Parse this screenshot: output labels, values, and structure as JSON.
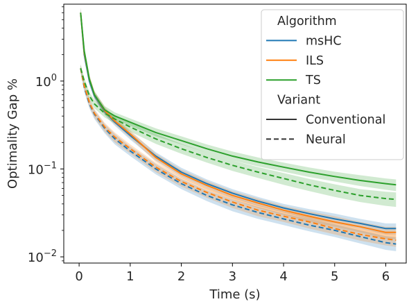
{
  "chart_data": {
    "type": "line",
    "title": "",
    "xlabel": "Time (s)",
    "ylabel": "Optimality Gap %",
    "xlim": [
      -0.3,
      6.4
    ],
    "ylim": [
      0.0085,
      7.5
    ],
    "yscale": "log",
    "grid": false,
    "x_ticks": [
      0,
      1,
      2,
      3,
      4,
      5,
      6
    ],
    "x_tick_labels": [
      "0",
      "1",
      "2",
      "3",
      "4",
      "5",
      "6"
    ],
    "y_ticks": [
      0.01,
      0.1,
      1
    ],
    "y_tick_labels": [
      {
        "base": "10",
        "exp": "−2"
      },
      {
        "base": "10",
        "exp": "−1"
      },
      {
        "base": "10",
        "exp": "0"
      }
    ],
    "legend": {
      "placement": "top-right",
      "title_hue": "Algorithm",
      "title_style": "Variant",
      "hue_entries": [
        {
          "label": "msHC",
          "color": "#1f77b4"
        },
        {
          "label": "ILS",
          "color": "#ff7f0e"
        },
        {
          "label": "TS",
          "color": "#2ca02c"
        }
      ],
      "style_entries": [
        {
          "label": "Conventional",
          "dash": "solid"
        },
        {
          "label": "Neural",
          "dash": "dashed"
        }
      ]
    },
    "series": [
      {
        "algorithm": "msHC",
        "variant": "Conventional",
        "color": "#1f77b4",
        "dash": "solid",
        "x": [
          0.03,
          0.1,
          0.2,
          0.3,
          0.5,
          0.7,
          1.0,
          1.5,
          2.0,
          2.5,
          3.0,
          3.5,
          4.0,
          4.5,
          5.0,
          5.5,
          6.0,
          6.2
        ],
        "y": [
          6.0,
          2.0,
          1.0,
          0.68,
          0.45,
          0.34,
          0.24,
          0.14,
          0.092,
          0.068,
          0.053,
          0.043,
          0.036,
          0.031,
          0.027,
          0.024,
          0.021,
          0.021
        ],
        "lower": [
          5.2,
          1.75,
          0.9,
          0.62,
          0.41,
          0.31,
          0.215,
          0.125,
          0.082,
          0.061,
          0.047,
          0.038,
          0.032,
          0.027,
          0.024,
          0.021,
          0.018,
          0.018
        ],
        "upper": [
          6.8,
          2.3,
          1.12,
          0.75,
          0.5,
          0.375,
          0.265,
          0.155,
          0.103,
          0.076,
          0.059,
          0.048,
          0.04,
          0.035,
          0.031,
          0.027,
          0.024,
          0.024
        ]
      },
      {
        "algorithm": "ILS",
        "variant": "Conventional",
        "color": "#ff7f0e",
        "dash": "solid",
        "x": [
          0.03,
          0.1,
          0.2,
          0.3,
          0.5,
          0.7,
          1.0,
          1.5,
          2.0,
          2.5,
          3.0,
          3.5,
          4.0,
          4.5,
          5.0,
          5.5,
          6.0,
          6.2
        ],
        "y": [
          6.0,
          2.1,
          1.05,
          0.7,
          0.46,
          0.35,
          0.25,
          0.135,
          0.088,
          0.065,
          0.05,
          0.041,
          0.034,
          0.029,
          0.025,
          0.022,
          0.019,
          0.019
        ],
        "lower": [
          5.2,
          1.85,
          0.94,
          0.63,
          0.42,
          0.32,
          0.225,
          0.12,
          0.079,
          0.058,
          0.045,
          0.036,
          0.03,
          0.025,
          0.022,
          0.019,
          0.016,
          0.016
        ],
        "upper": [
          6.8,
          2.4,
          1.17,
          0.77,
          0.51,
          0.385,
          0.275,
          0.15,
          0.098,
          0.073,
          0.056,
          0.046,
          0.038,
          0.033,
          0.029,
          0.025,
          0.022,
          0.022
        ]
      },
      {
        "algorithm": "TS",
        "variant": "Conventional",
        "color": "#2ca02c",
        "dash": "solid",
        "x": [
          0.03,
          0.1,
          0.2,
          0.3,
          0.5,
          0.7,
          1.0,
          1.5,
          2.0,
          2.5,
          3.0,
          3.5,
          4.0,
          4.5,
          5.0,
          5.5,
          6.0,
          6.2
        ],
        "y": [
          6.0,
          2.2,
          1.05,
          0.7,
          0.47,
          0.4,
          0.34,
          0.26,
          0.21,
          0.17,
          0.14,
          0.12,
          0.105,
          0.092,
          0.082,
          0.074,
          0.068,
          0.066
        ],
        "lower": [
          5.3,
          1.95,
          0.95,
          0.64,
          0.43,
          0.365,
          0.31,
          0.235,
          0.19,
          0.153,
          0.125,
          0.107,
          0.093,
          0.081,
          0.072,
          0.064,
          0.058,
          0.056
        ],
        "upper": [
          6.8,
          2.5,
          1.17,
          0.77,
          0.52,
          0.44,
          0.375,
          0.29,
          0.235,
          0.19,
          0.158,
          0.135,
          0.118,
          0.104,
          0.093,
          0.085,
          0.078,
          0.076
        ]
      },
      {
        "algorithm": "msHC",
        "variant": "Neural",
        "color": "#1f77b4",
        "dash": "dashed",
        "x": [
          0.03,
          0.1,
          0.2,
          0.3,
          0.5,
          0.7,
          1.0,
          1.5,
          2.0,
          2.5,
          3.0,
          3.5,
          4.0,
          4.5,
          5.0,
          5.5,
          6.0,
          6.2
        ],
        "y": [
          1.4,
          0.85,
          0.55,
          0.42,
          0.29,
          0.22,
          0.16,
          0.1,
          0.068,
          0.05,
          0.039,
          0.032,
          0.027,
          0.023,
          0.02,
          0.017,
          0.0145,
          0.014
        ],
        "lower": [
          1.25,
          0.76,
          0.49,
          0.37,
          0.255,
          0.19,
          0.14,
          0.087,
          0.059,
          0.043,
          0.033,
          0.027,
          0.023,
          0.0195,
          0.0168,
          0.0142,
          0.012,
          0.0116
        ],
        "upper": [
          1.55,
          0.95,
          0.62,
          0.47,
          0.325,
          0.25,
          0.18,
          0.114,
          0.077,
          0.057,
          0.045,
          0.037,
          0.031,
          0.027,
          0.0235,
          0.02,
          0.0172,
          0.0167
        ]
      },
      {
        "algorithm": "ILS",
        "variant": "Neural",
        "color": "#ff7f0e",
        "dash": "dashed",
        "x": [
          0.03,
          0.1,
          0.2,
          0.3,
          0.5,
          0.7,
          1.0,
          1.5,
          2.0,
          2.5,
          3.0,
          3.5,
          4.0,
          4.5,
          5.0,
          5.5,
          6.0,
          6.2
        ],
        "y": [
          1.4,
          0.88,
          0.57,
          0.43,
          0.3,
          0.23,
          0.17,
          0.105,
          0.072,
          0.054,
          0.042,
          0.034,
          0.029,
          0.025,
          0.021,
          0.018,
          0.016,
          0.0155
        ],
        "lower": [
          1.25,
          0.79,
          0.51,
          0.385,
          0.265,
          0.2,
          0.15,
          0.092,
          0.063,
          0.047,
          0.036,
          0.029,
          0.025,
          0.021,
          0.018,
          0.0153,
          0.0135,
          0.013
        ],
        "upper": [
          1.55,
          0.98,
          0.64,
          0.48,
          0.335,
          0.26,
          0.19,
          0.118,
          0.081,
          0.061,
          0.048,
          0.039,
          0.033,
          0.029,
          0.0245,
          0.021,
          0.0187,
          0.0182
        ]
      },
      {
        "algorithm": "TS",
        "variant": "Neural",
        "color": "#2ca02c",
        "dash": "dashed",
        "x": [
          0.03,
          0.1,
          0.2,
          0.3,
          0.5,
          0.7,
          1.0,
          1.5,
          2.0,
          2.5,
          3.0,
          3.5,
          4.0,
          4.5,
          5.0,
          5.5,
          6.0,
          6.2
        ],
        "y": [
          1.4,
          1.0,
          0.68,
          0.55,
          0.43,
          0.37,
          0.3,
          0.22,
          0.17,
          0.135,
          0.11,
          0.092,
          0.078,
          0.066,
          0.057,
          0.05,
          0.046,
          0.045
        ],
        "lower": [
          1.27,
          0.9,
          0.61,
          0.49,
          0.385,
          0.33,
          0.265,
          0.193,
          0.149,
          0.118,
          0.095,
          0.079,
          0.066,
          0.056,
          0.048,
          0.042,
          0.038,
          0.037
        ],
        "upper": [
          1.55,
          1.1,
          0.75,
          0.61,
          0.475,
          0.41,
          0.335,
          0.25,
          0.193,
          0.153,
          0.125,
          0.105,
          0.09,
          0.077,
          0.067,
          0.059,
          0.055,
          0.054
        ]
      }
    ]
  }
}
